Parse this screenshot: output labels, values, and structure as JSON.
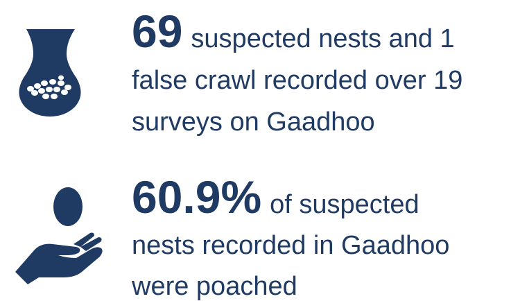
{
  "items": [
    {
      "stat": "69",
      "lines": [
        "suspected nests and 1",
        "false crawl recorded over 19",
        "surveys on Gaadhoo"
      ]
    },
    {
      "stat": "60.9%",
      "lines": [
        "of suspected",
        "nests recorded in Gaadhoo",
        "were poached"
      ]
    }
  ]
}
